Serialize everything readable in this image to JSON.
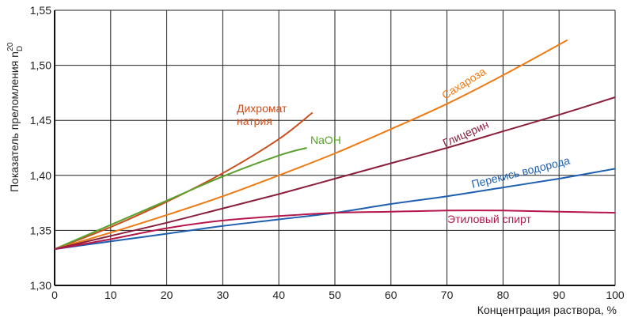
{
  "chart_data": {
    "type": "line",
    "title": "",
    "xlabel": "Концентрация раствора, %",
    "ylabel_main": "Показатель преломления n",
    "ylabel_sub": "D",
    "ylabel_sup": "20",
    "xlim": [
      0,
      100
    ],
    "ylim": [
      1.3,
      1.55
    ],
    "grid": true,
    "x_ticks": [
      0,
      10,
      20,
      30,
      40,
      50,
      60,
      70,
      80,
      90,
      100
    ],
    "x_tick_labels": [
      "0",
      "10",
      "20",
      "30",
      "40",
      "50",
      "60",
      "70",
      "80",
      "90",
      "100"
    ],
    "y_ticks": [
      1.3,
      1.35,
      1.4,
      1.45,
      1.5,
      1.55
    ],
    "y_tick_labels": [
      "1,30",
      "1,35",
      "1,40",
      "1,45",
      "1,50",
      "1,55"
    ],
    "series": [
      {
        "name": "Дихромат натрия",
        "label_lines": [
          "Дихромат",
          "натрия"
        ],
        "color": "#c8501e",
        "x": [
          0,
          10,
          20,
          30,
          40,
          46
        ],
        "y": [
          1.333,
          1.353,
          1.376,
          1.402,
          1.433,
          1.457
        ]
      },
      {
        "name": "NaOH",
        "label_lines": [
          "NaOH"
        ],
        "color": "#5aa02c",
        "x": [
          0,
          10,
          20,
          30,
          40,
          45
        ],
        "y": [
          1.333,
          1.355,
          1.377,
          1.399,
          1.418,
          1.425
        ]
      },
      {
        "name": "Сахароза",
        "label_lines": [
          "Сахароза"
        ],
        "color": "#ee7a14",
        "x": [
          0,
          10,
          20,
          30,
          40,
          50,
          60,
          70,
          80,
          91.5
        ],
        "y": [
          1.333,
          1.348,
          1.364,
          1.381,
          1.4,
          1.42,
          1.442,
          1.465,
          1.491,
          1.523
        ]
      },
      {
        "name": "Глицерин",
        "label_lines": [
          "Глицерин"
        ],
        "color": "#8a1f3c",
        "x": [
          0,
          10,
          20,
          30,
          40,
          50,
          60,
          70,
          80,
          90,
          100
        ],
        "y": [
          1.333,
          1.345,
          1.357,
          1.37,
          1.383,
          1.397,
          1.411,
          1.425,
          1.44,
          1.455,
          1.471
        ]
      },
      {
        "name": "Перекись водорода",
        "label_lines": [
          "Перекись водорода"
        ],
        "color": "#1f5fb0",
        "x": [
          0,
          10,
          20,
          30,
          40,
          50,
          60,
          70,
          80,
          90,
          100
        ],
        "y": [
          1.333,
          1.34,
          1.347,
          1.354,
          1.36,
          1.366,
          1.374,
          1.381,
          1.389,
          1.397,
          1.406
        ]
      },
      {
        "name": "Этиловый спирт",
        "label_lines": [
          "Этиловый спирт"
        ],
        "color": "#b5174b",
        "x": [
          0,
          10,
          20,
          30,
          40,
          50,
          60,
          70,
          80,
          90,
          100
        ],
        "y": [
          1.333,
          1.342,
          1.352,
          1.359,
          1.363,
          1.366,
          1.367,
          1.368,
          1.368,
          1.367,
          1.366
        ]
      }
    ]
  }
}
